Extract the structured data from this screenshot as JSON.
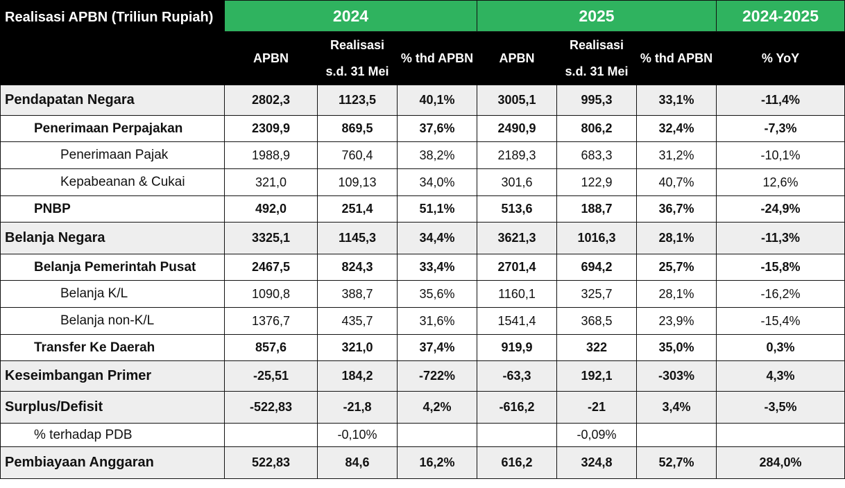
{
  "header": {
    "title": "Realisasi APBN (Triliun Rupiah)",
    "years": [
      "2024",
      "2025",
      "2024-2025"
    ],
    "columns": [
      "APBN",
      "Realisasi s.d. 31 Mei",
      "% thd APBN",
      "APBN",
      "Realisasi s.d. 31 Mei",
      "% thd APBN",
      "% YoY"
    ]
  },
  "rows": [
    {
      "label": "Pendapatan Negara",
      "values": [
        "2802,3",
        "1123,5",
        "40,1%",
        "3005,1",
        "995,3",
        "33,1%",
        "-11,4%"
      ]
    },
    {
      "label": "Penerimaan Perpajakan",
      "values": [
        "2309,9",
        "869,5",
        "37,6%",
        "2490,9",
        "806,2",
        "32,4%",
        "-7,3%"
      ]
    },
    {
      "label": "Penerimaan Pajak",
      "values": [
        "1988,9",
        "760,4",
        "38,2%",
        "2189,3",
        "683,3",
        "31,2%",
        "-10,1%"
      ]
    },
    {
      "label": "Kepabeanan & Cukai",
      "values": [
        "321,0",
        "109,13",
        "34,0%",
        "301,6",
        "122,9",
        "40,7%",
        "12,6%"
      ]
    },
    {
      "label": "PNBP",
      "values": [
        "492,0",
        "251,4",
        "51,1%",
        "513,6",
        "188,7",
        "36,7%",
        "-24,9%"
      ]
    },
    {
      "label": "Belanja Negara",
      "values": [
        "3325,1",
        "1145,3",
        "34,4%",
        "3621,3",
        "1016,3",
        "28,1%",
        "-11,3%"
      ]
    },
    {
      "label": "Belanja Pemerintah Pusat",
      "values": [
        "2467,5",
        "824,3",
        "33,4%",
        "2701,4",
        "694,2",
        "25,7%",
        "-15,8%"
      ]
    },
    {
      "label": "Belanja K/L",
      "values": [
        "1090,8",
        "388,7",
        "35,6%",
        "1160,1",
        "325,7",
        "28,1%",
        "-16,2%"
      ]
    },
    {
      "label": "Belanja non-K/L",
      "values": [
        "1376,7",
        "435,7",
        "31,6%",
        "1541,4",
        "368,5",
        "23,9%",
        "-15,4%"
      ]
    },
    {
      "label": "Transfer Ke Daerah",
      "values": [
        "857,6",
        "321,0",
        "37,4%",
        "919,9",
        "322",
        "35,0%",
        "0,3%"
      ]
    },
    {
      "label": "Keseimbangan Primer",
      "values": [
        "-25,51",
        "184,2",
        "-722%",
        "-63,3",
        "192,1",
        "-303%",
        "4,3%"
      ]
    },
    {
      "label": "Surplus/Defisit",
      "values": [
        "-522,83",
        "-21,8",
        "4,2%",
        "-616,2",
        "-21",
        "3,4%",
        "-3,5%"
      ]
    },
    {
      "label": "% terhadap PDB",
      "values": [
        "",
        "-0,10%",
        "",
        "",
        "-0,09%",
        "",
        ""
      ]
    },
    {
      "label": "Pembiayaan Anggaran",
      "values": [
        "522,83",
        "84,6",
        "16,2%",
        "616,2",
        "324,8",
        "52,7%",
        "284,0%"
      ]
    }
  ]
}
